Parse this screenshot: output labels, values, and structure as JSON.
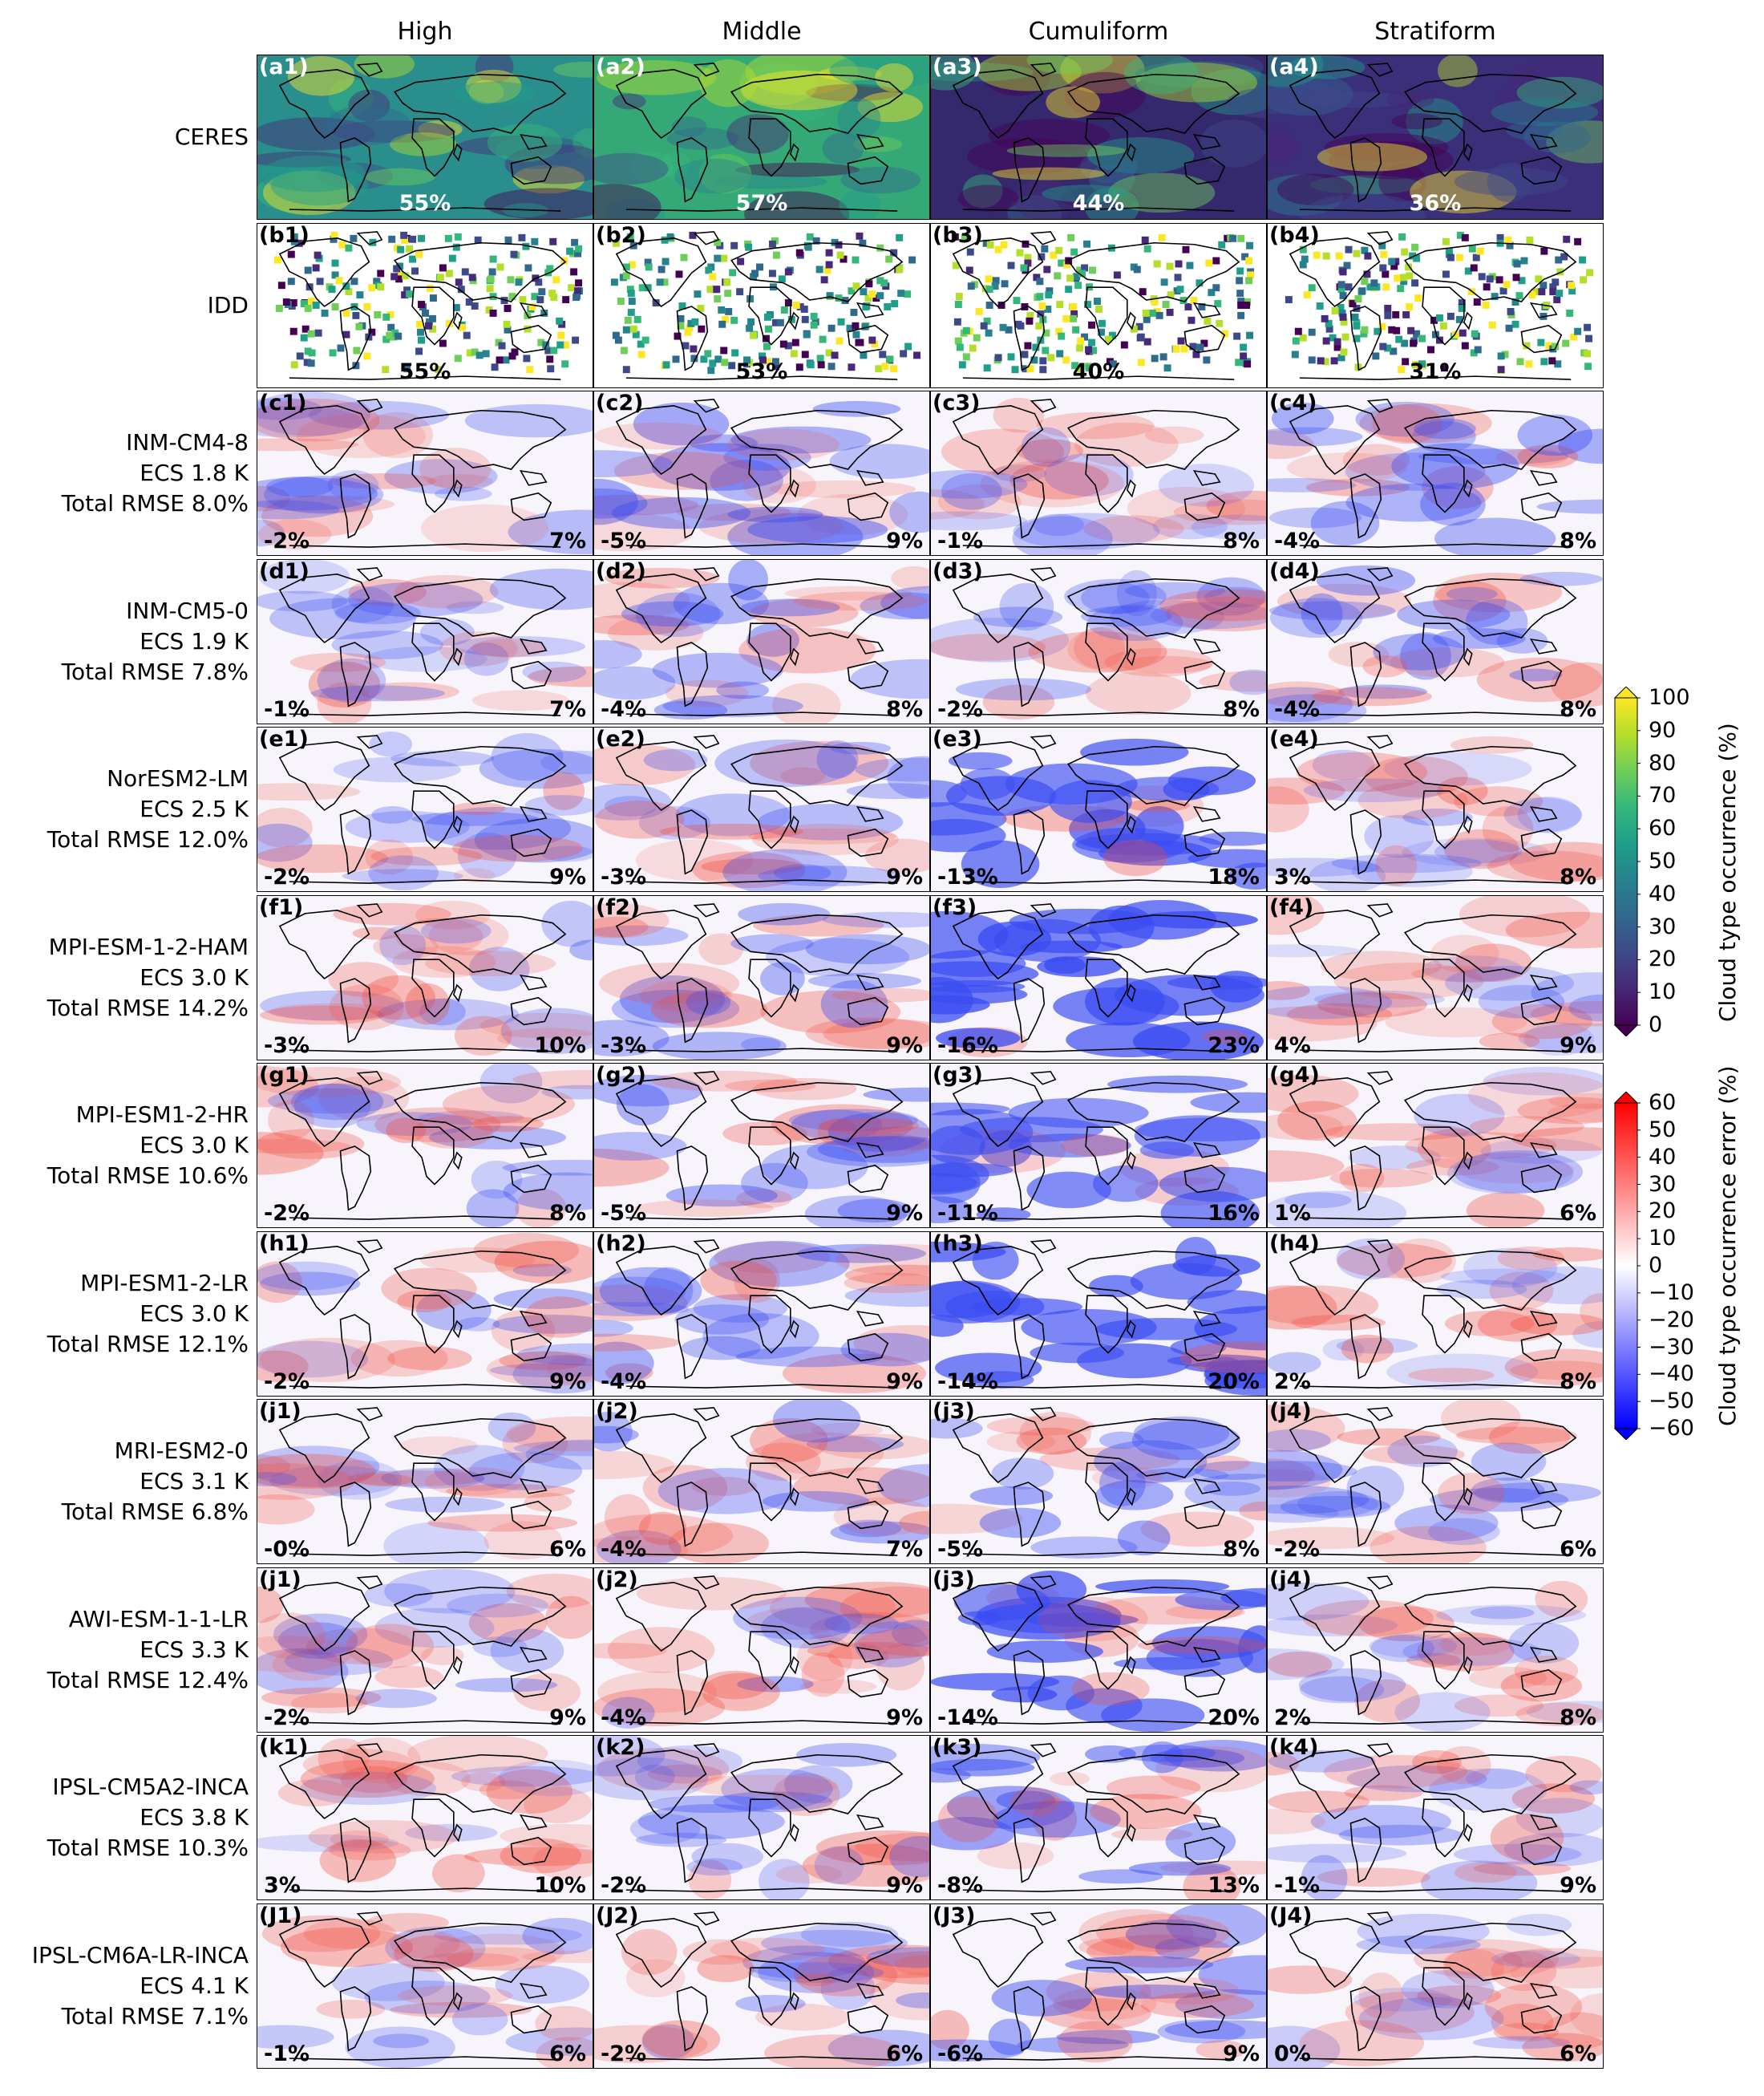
{
  "columns": [
    "High",
    "Middle",
    "Cumuliform",
    "Stratiform"
  ],
  "rows": [
    {
      "label": [
        "CERES"
      ],
      "kind": "obs",
      "panels": [
        {
          "tag": "(a1)",
          "value": "55%"
        },
        {
          "tag": "(a2)",
          "value": "57%"
        },
        {
          "tag": "(a3)",
          "value": "44%"
        },
        {
          "tag": "(a4)",
          "value": "36%"
        }
      ]
    },
    {
      "label": [
        "IDD"
      ],
      "kind": "idd",
      "panels": [
        {
          "tag": "(b1)",
          "value": "55%"
        },
        {
          "tag": "(b2)",
          "value": "53%"
        },
        {
          "tag": "(b3)",
          "value": "40%"
        },
        {
          "tag": "(b4)",
          "value": "31%"
        }
      ]
    },
    {
      "label": [
        "INM-CM4-8",
        "ECS 1.8 K",
        "Total RMSE 8.0%"
      ],
      "kind": "model",
      "panels": [
        {
          "tag": "(c1)",
          "mean": "-2%",
          "rmse": "7%"
        },
        {
          "tag": "(c2)",
          "mean": "-5%",
          "rmse": "9%"
        },
        {
          "tag": "(c3)",
          "mean": "-1%",
          "rmse": "8%"
        },
        {
          "tag": "(c4)",
          "mean": "-4%",
          "rmse": "8%"
        }
      ]
    },
    {
      "label": [
        "INM-CM5-0",
        "ECS 1.9 K",
        "Total RMSE 7.8%"
      ],
      "kind": "model",
      "panels": [
        {
          "tag": "(d1)",
          "mean": "-1%",
          "rmse": "7%"
        },
        {
          "tag": "(d2)",
          "mean": "-4%",
          "rmse": "8%"
        },
        {
          "tag": "(d3)",
          "mean": "-2%",
          "rmse": "8%"
        },
        {
          "tag": "(d4)",
          "mean": "-4%",
          "rmse": "8%"
        }
      ]
    },
    {
      "label": [
        "NorESM2-LM",
        "ECS 2.5 K",
        "Total RMSE 12.0%"
      ],
      "kind": "model",
      "panels": [
        {
          "tag": "(e1)",
          "mean": "-2%",
          "rmse": "9%"
        },
        {
          "tag": "(e2)",
          "mean": "-3%",
          "rmse": "9%"
        },
        {
          "tag": "(e3)",
          "mean": "-13%",
          "rmse": "18%"
        },
        {
          "tag": "(e4)",
          "mean": "3%",
          "rmse": "8%"
        }
      ]
    },
    {
      "label": [
        "MPI-ESM-1-2-HAM",
        "ECS 3.0 K",
        "Total RMSE 14.2%"
      ],
      "kind": "model",
      "panels": [
        {
          "tag": "(f1)",
          "mean": "-3%",
          "rmse": "10%"
        },
        {
          "tag": "(f2)",
          "mean": "-3%",
          "rmse": "9%"
        },
        {
          "tag": "(f3)",
          "mean": "-16%",
          "rmse": "23%"
        },
        {
          "tag": "(f4)",
          "mean": "4%",
          "rmse": "9%"
        }
      ]
    },
    {
      "label": [
        "MPI-ESM1-2-HR",
        "ECS 3.0 K",
        "Total RMSE 10.6%"
      ],
      "kind": "model",
      "panels": [
        {
          "tag": "(g1)",
          "mean": "-2%",
          "rmse": "8%"
        },
        {
          "tag": "(g2)",
          "mean": "-5%",
          "rmse": "9%"
        },
        {
          "tag": "(g3)",
          "mean": "-11%",
          "rmse": "16%"
        },
        {
          "tag": "(g4)",
          "mean": "1%",
          "rmse": "6%"
        }
      ]
    },
    {
      "label": [
        "MPI-ESM1-2-LR",
        "ECS 3.0 K",
        "Total RMSE 12.1%"
      ],
      "kind": "model",
      "panels": [
        {
          "tag": "(h1)",
          "mean": "-2%",
          "rmse": "9%"
        },
        {
          "tag": "(h2)",
          "mean": "-4%",
          "rmse": "9%"
        },
        {
          "tag": "(h3)",
          "mean": "-14%",
          "rmse": "20%"
        },
        {
          "tag": "(h4)",
          "mean": "2%",
          "rmse": "8%"
        }
      ]
    },
    {
      "label": [
        "MRI-ESM2-0",
        "ECS 3.1 K",
        "Total RMSE 6.8%"
      ],
      "kind": "model",
      "panels": [
        {
          "tag": "(j1)",
          "mean": "-0%",
          "rmse": "6%"
        },
        {
          "tag": "(j2)",
          "mean": "-4%",
          "rmse": "7%"
        },
        {
          "tag": "(j3)",
          "mean": "-5%",
          "rmse": "8%"
        },
        {
          "tag": "(j4)",
          "mean": "-2%",
          "rmse": "6%"
        }
      ]
    },
    {
      "label": [
        "AWI-ESM-1-1-LR",
        "ECS 3.3 K",
        "Total RMSE 12.4%"
      ],
      "kind": "model",
      "panels": [
        {
          "tag": "(j1)",
          "mean": "-2%",
          "rmse": "9%"
        },
        {
          "tag": "(j2)",
          "mean": "-4%",
          "rmse": "9%"
        },
        {
          "tag": "(j3)",
          "mean": "-14%",
          "rmse": "20%"
        },
        {
          "tag": "(j4)",
          "mean": "2%",
          "rmse": "8%"
        }
      ]
    },
    {
      "label": [
        "IPSL-CM5A2-INCA",
        "ECS 3.8 K",
        "Total RMSE 10.3%"
      ],
      "kind": "model",
      "panels": [
        {
          "tag": "(k1)",
          "mean": "3%",
          "rmse": "10%"
        },
        {
          "tag": "(k2)",
          "mean": "-2%",
          "rmse": "9%"
        },
        {
          "tag": "(k3)",
          "mean": "-8%",
          "rmse": "13%"
        },
        {
          "tag": "(k4)",
          "mean": "-1%",
          "rmse": "9%"
        }
      ]
    },
    {
      "label": [
        "IPSL-CM6A-LR-INCA",
        "ECS 4.1 K",
        "Total RMSE 7.1%"
      ],
      "kind": "model",
      "panels": [
        {
          "tag": "(J1)",
          "mean": "-1%",
          "rmse": "6%"
        },
        {
          "tag": "(J2)",
          "mean": "-2%",
          "rmse": "6%"
        },
        {
          "tag": "(J3)",
          "mean": "-6%",
          "rmse": "9%"
        },
        {
          "tag": "(J4)",
          "mean": "0%",
          "rmse": "6%"
        }
      ]
    }
  ],
  "colorbar_occurrence": {
    "title": "Cloud type occurrence (%)",
    "ticks": [
      "100",
      "90",
      "80",
      "70",
      "60",
      "50",
      "40",
      "30",
      "20",
      "10",
      "0"
    ],
    "colormap": "viridis",
    "colors": [
      "#440154",
      "#482878",
      "#3e4989",
      "#31688e",
      "#26828e",
      "#1f9e89",
      "#35b779",
      "#6ece58",
      "#b5de2b",
      "#fde725"
    ]
  },
  "colorbar_error": {
    "title": "Cloud type occurrence error (%)",
    "ticks": [
      "60",
      "50",
      "40",
      "30",
      "20",
      "10",
      "0",
      "−10",
      "−20",
      "−30",
      "−40",
      "−50",
      "−60"
    ],
    "colormap": "bwr",
    "colors": [
      "#0000ff",
      "#ffffff",
      "#ff0000"
    ]
  }
}
